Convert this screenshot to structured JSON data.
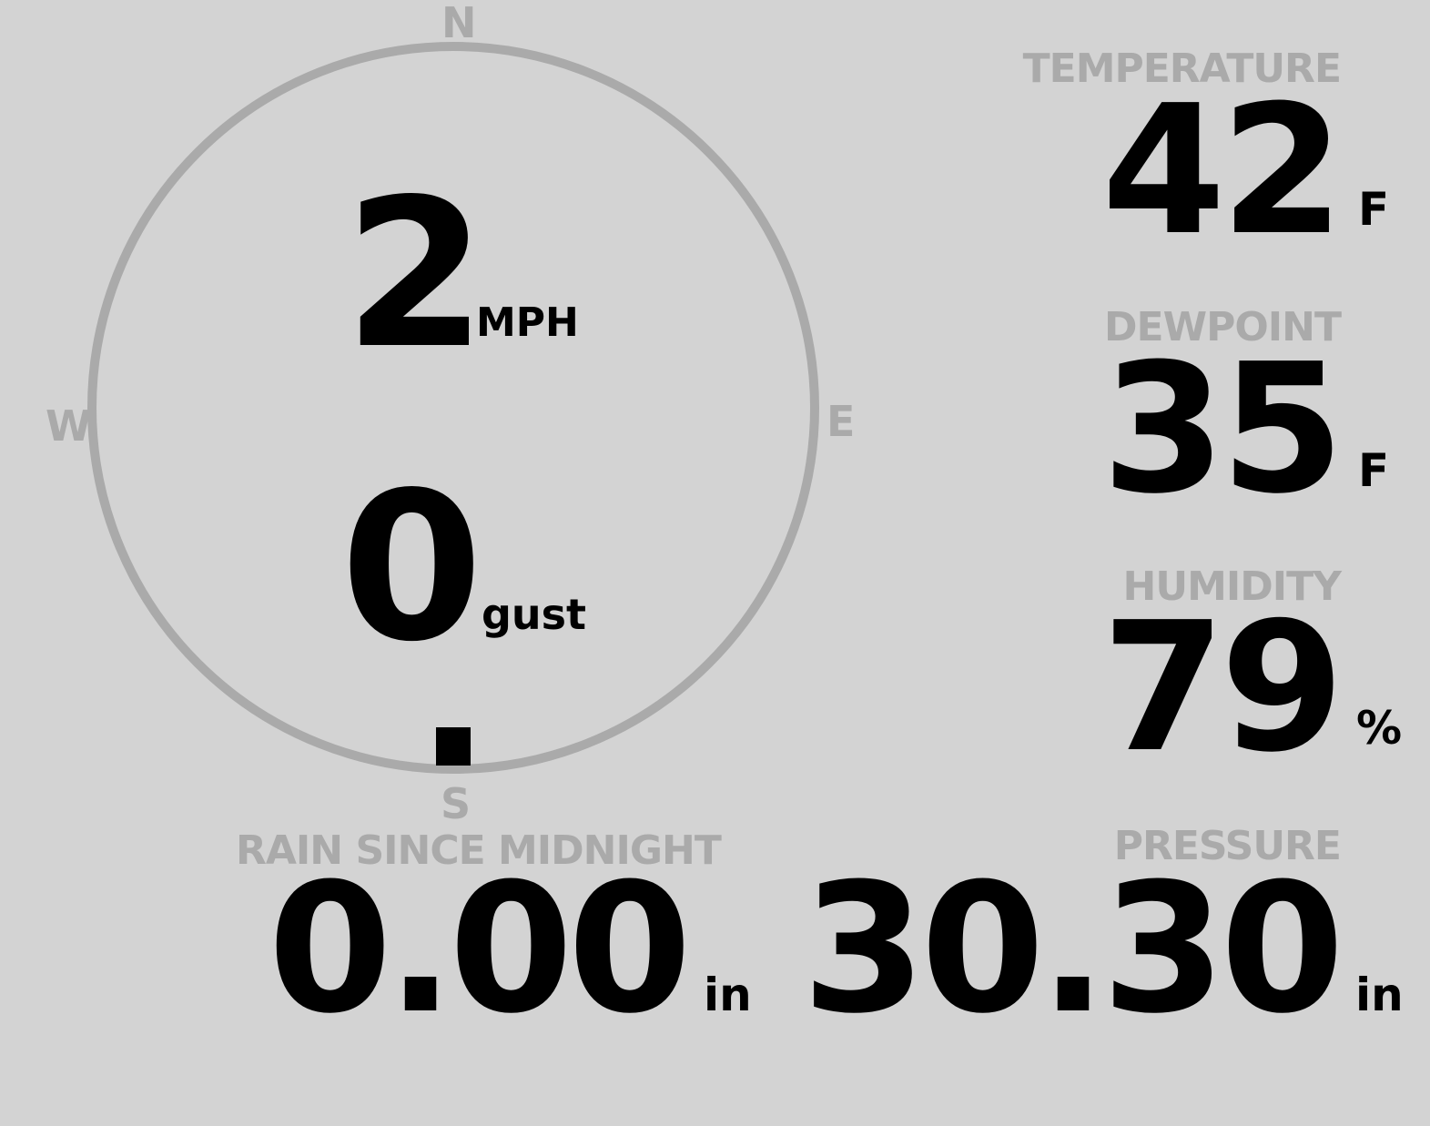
{
  "colors": {
    "background": "#d3d3d3",
    "label": "#aaaaaa",
    "value": "#000000",
    "ring": "#aaaaaa"
  },
  "wind": {
    "speed": "2",
    "speed_unit": "MPH",
    "gust": "0",
    "gust_unit": "gust",
    "direction_deg": 180,
    "compass": {
      "n": "N",
      "e": "E",
      "s": "S",
      "w": "W"
    }
  },
  "temperature": {
    "label": "TEMPERATURE",
    "value": "42",
    "unit": "F"
  },
  "dewpoint": {
    "label": "DEWPOINT",
    "value": "35",
    "unit": "F"
  },
  "humidity": {
    "label": "HUMIDITY",
    "value": "79",
    "unit": "%"
  },
  "rain": {
    "label": "RAIN SINCE MIDNIGHT",
    "value": "0.00",
    "unit": "in"
  },
  "pressure": {
    "label": "PRESSURE",
    "value": "30.30",
    "unit": "in"
  }
}
